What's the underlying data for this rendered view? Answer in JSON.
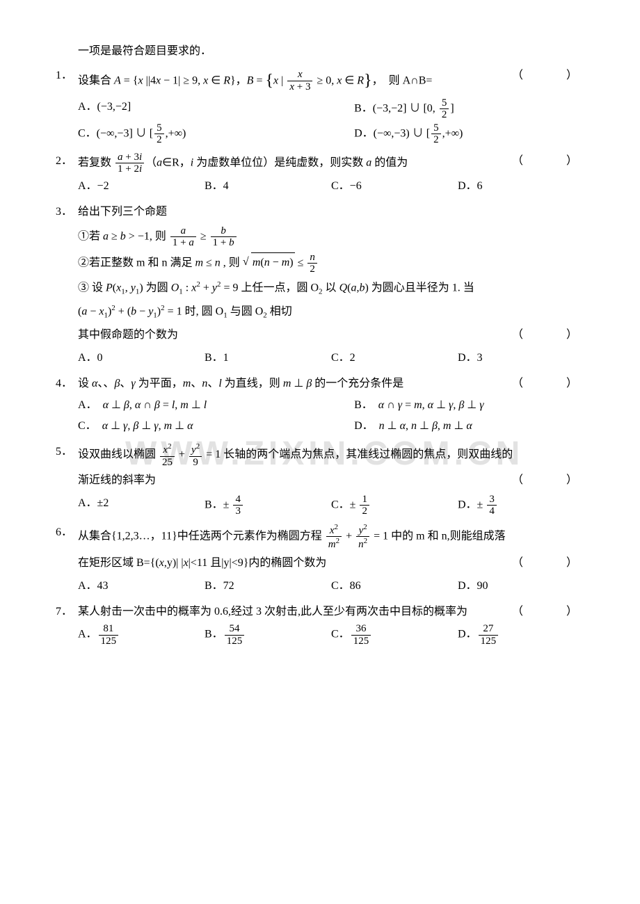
{
  "colors": {
    "text": "#000000",
    "bg": "#ffffff",
    "watermark": "#e2e2e2"
  },
  "typography": {
    "body_fontsize_pt": 12,
    "watermark_fontsize_pt": 36,
    "line_height": 1.8
  },
  "header": "一项是最符合题目要求的．",
  "watermark": "WWW.ZIXIN.COM.CN",
  "paren": "（　　）",
  "questions": [
    {
      "num": "1．",
      "stem": "设集合 <span class='ital'>A</span> = {<span class='ital'>x</span> ||4<span class='ital'>x</span> − 1| ≥ 9, <span class='ital'>x</span> ∈ <span class='ital'>R</span>}，<span class='ital'>B</span> = <span class='brace-l'>{</span><span class='ital'>x</span> | <span class='frac'><span class='n'><span class='ital'>x</span></span><span class='d'><span class='ital'>x</span> + 3</span></span> ≥ 0, <span class='ital'>x</span> ∈ <span class='ital'>R</span><span class='brace-r'>}</span>，　则 A∩B=",
      "paren": true,
      "options_layout": "2col",
      "options": [
        [
          "A．(−3,−2]",
          "B．(−3,−2] ∪ [0, <span class='frac'><span class='n'>5</span><span class='d'>2</span></span>]"
        ],
        [
          "C．(−∞,−3] ∪ [<span class='frac'><span class='n'>5</span><span class='d'>2</span></span>,+∞)",
          "D．(−∞,−3) ∪ [<span class='frac'><span class='n'>5</span><span class='d'>2</span></span>,+∞)"
        ]
      ]
    },
    {
      "num": "2．",
      "stem": "若复数 <span class='frac'><span class='n'><span class='ital'>a</span> + 3<span class='ital'>i</span></span><span class='d'>1 + 2<span class='ital'>i</span></span></span>（<span class='ital'>a</span>∈R，<span class='ital'>i</span> 为虚数单位位）是纯虚数，则实数 <span class='ital'>a</span> 的值为",
      "paren": true,
      "options_layout": "4col",
      "options": [
        [
          "A．−2",
          "B．4",
          "C．−6",
          "D．6"
        ]
      ]
    },
    {
      "num": "3．",
      "stem": "给出下列三个命题",
      "subs": [
        "①若 <span class='ital'>a</span> ≥ <span class='ital'>b</span> &gt; −1, 则 <span class='frac'><span class='n'><span class='ital'>a</span></span><span class='d'>1 + <span class='ital'>a</span></span></span> ≥ <span class='frac'><span class='n'><span class='ital'>b</span></span><span class='d'>1 + <span class='ital'>b</span></span></span>",
        "②若正整数 m 和 n 满足 <span class='ital'>m</span> ≤ <span class='ital'>n</span> , 则 <span class='sqrt'><span class='rad'><span class='ital'>m</span>(<span class='ital'>n</span> − <span class='ital'>m</span>)</span></span> ≤ <span class='frac'><span class='n'><span class='ital'>n</span></span><span class='d'>2</span></span>",
        "③ 设 <span class='ital'>P</span>(<span class='ital'>x</span><sub>1</sub>, <span class='ital'>y</span><sub>1</sub>) 为圆 <span class='ital'>O</span><sub>1</sub> : <span class='ital'>x</span><sup>2</sup> + <span class='ital'>y</span><sup>2</sup> = 9 上任一点，圆 O<sub>2</sub> 以 <span class='ital'>Q</span>(<span class='ital'>a</span>,<span class='ital'>b</span>) 为圆心且半径为 1. 当",
        "(<span class='ital'>a</span> − <span class='ital'>x</span><sub>1</sub>)<sup>2</sup> + (<span class='ital'>b</span> − <span class='ital'>y</span><sub>1</sub>)<sup>2</sup> = 1 时, 圆 O<sub>1</sub> 与圆 O<sub>2</sub> 相切",
        "其中假命题的个数为"
      ],
      "paren": true,
      "paren_after_subs": true,
      "options_layout": "4col",
      "options": [
        [
          "A．0",
          "B．1",
          "C．2",
          "D．3"
        ]
      ]
    },
    {
      "num": "4．",
      "stem": "设 <span class='ital'>α</span>、、<span class='ital'>β</span>、<span class='ital'>γ</span> 为平面，<span class='ital'>m</span>、<span class='ital'>n</span>、<span class='ital'>l</span> 为直线，则 <span class='ital'>m</span> ⊥ <span class='ital'>β</span> 的一个充分条件是",
      "paren": true,
      "options_layout": "2col",
      "options": [
        [
          "A．　<span class='ital'>α</span> ⊥ <span class='ital'>β</span>, <span class='ital'>α</span> ∩ <span class='ital'>β</span> = <span class='ital'>l</span>, <span class='ital'>m</span> ⊥ <span class='ital'>l</span>",
          "B．　<span class='ital'>α</span> ∩ <span class='ital'>γ</span> = <span class='ital'>m</span>, <span class='ital'>α</span> ⊥ <span class='ital'>γ</span>, <span class='ital'>β</span> ⊥ <span class='ital'>γ</span>"
        ],
        [
          "C．　<span class='ital'>α</span> ⊥ <span class='ital'>γ</span>, <span class='ital'>β</span> ⊥ <span class='ital'>γ</span>, <span class='ital'>m</span> ⊥ <span class='ital'>α</span>",
          "D．　<span class='ital'>n</span> ⊥ <span class='ital'>α</span>, <span class='ital'>n</span> ⊥ <span class='ital'>β</span>, <span class='ital'>m</span> ⊥ <span class='ital'>α</span>"
        ]
      ]
    },
    {
      "num": "5．",
      "stem": "设双曲线以椭圆 <span class='frac'><span class='n'><span class='ital'>x</span><sup>2</sup></span><span class='d'>25</span></span> + <span class='frac'><span class='n'><span class='ital'>y</span><sup>2</sup></span><span class='d'>9</span></span> = 1 长轴的两个端点为焦点，其准线过椭圆的焦点，则双曲线的",
      "subs": [
        "渐近线的斜率为"
      ],
      "paren": true,
      "paren_after_subs": true,
      "options_layout": "4col",
      "options": [
        [
          "A．±2",
          "B．± <span class='frac'><span class='n'>4</span><span class='d'>3</span></span>",
          "C．± <span class='frac'><span class='n'>1</span><span class='d'>2</span></span>",
          "D．± <span class='frac'><span class='n'>3</span><span class='d'>4</span></span>"
        ]
      ]
    },
    {
      "num": "6．",
      "stem": "从集合{1,2,3…，11}中任选两个元素作为椭圆方程 <span class='frac'><span class='n'><span class='ital'>x</span><sup>2</sup></span><span class='d'><span class='ital'>m</span><sup>2</sup></span></span> + <span class='frac'><span class='n'><span class='ital'>y</span><sup>2</sup></span><span class='d'><span class='ital'>n</span><sup>2</sup></span></span> = 1 中的 m 和 n,则能组成落",
      "subs": [
        "在矩形区域 B={(<span class='ital'>x</span>,y)| |<span class='ital'>x</span>|&lt;11 且|y|&lt;9}内的椭圆个数为"
      ],
      "paren": true,
      "paren_after_subs": true,
      "options_layout": "4col",
      "options": [
        [
          "A．43",
          "B．72",
          "C．86",
          "D．90"
        ]
      ]
    },
    {
      "num": "7．",
      "stem": "某人射击一次击中的概率为 0.6,经过 3 次射击,此人至少有两次击中目标的概率为",
      "paren": true,
      "options_layout": "4col",
      "options": [
        [
          "A．<span class='frac'><span class='n'>81</span><span class='d'>125</span></span>",
          "B．<span class='frac'><span class='n'>54</span><span class='d'>125</span></span>",
          "C．<span class='frac'><span class='n'>36</span><span class='d'>125</span></span>",
          "D．<span class='frac'><span class='n'>27</span><span class='d'>125</span></span>"
        ]
      ]
    }
  ]
}
